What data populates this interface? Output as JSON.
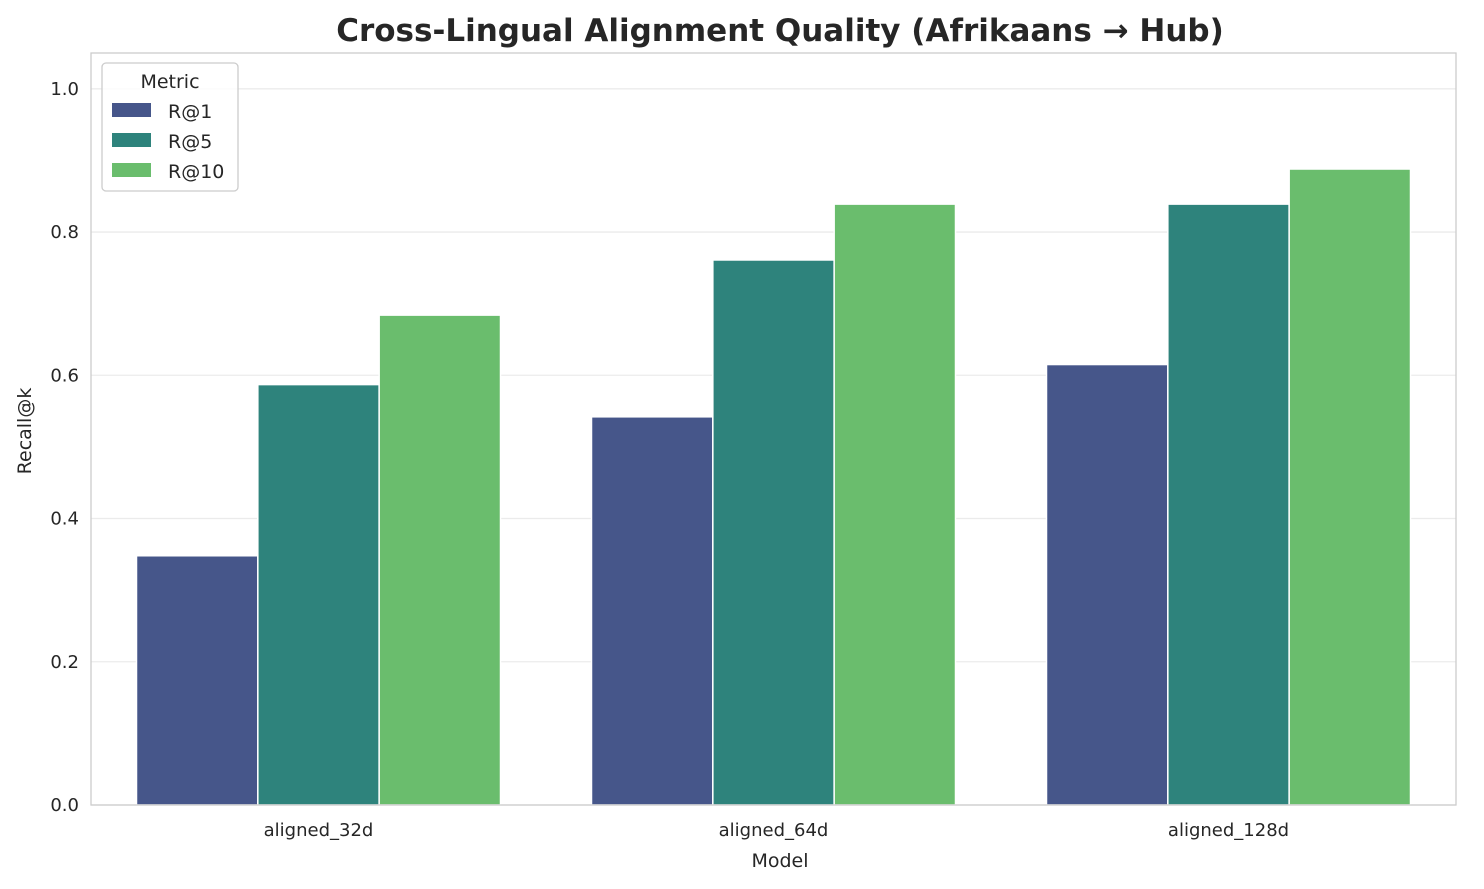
{
  "chart_data": {
    "type": "bar",
    "title": "Cross-Lingual Alignment Quality (Afrikaans → Hub)",
    "xlabel": "Model",
    "ylabel": "Recall@k",
    "ylim": [
      0,
      1.05
    ],
    "yticks": [
      "0.0",
      "0.2",
      "0.4",
      "0.6",
      "0.8",
      "1.0"
    ],
    "grid": true,
    "legend": {
      "title": "Metric",
      "placement": "top-left"
    },
    "categories": [
      "aligned_32d",
      "aligned_64d",
      "aligned_128d"
    ],
    "series": [
      {
        "name": "R@1",
        "color": "#46568a",
        "values": [
          0.348,
          0.542,
          0.615
        ]
      },
      {
        "name": "R@5",
        "color": "#2e837c",
        "values": [
          0.587,
          0.761,
          0.839
        ]
      },
      {
        "name": "R@10",
        "color": "#6abd6d",
        "values": [
          0.684,
          0.839,
          0.888
        ]
      }
    ]
  }
}
